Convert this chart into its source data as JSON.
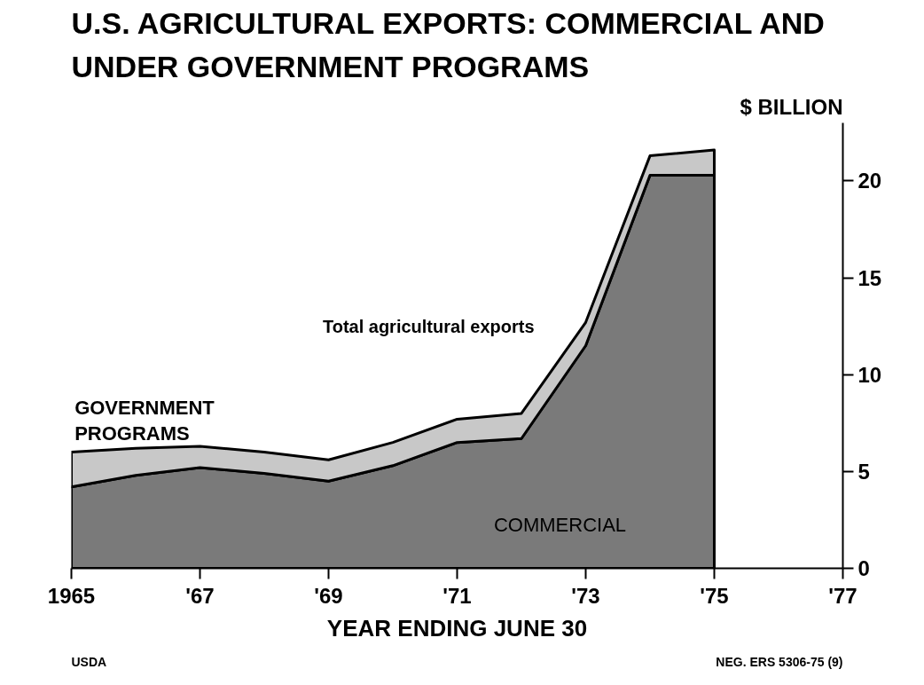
{
  "chart_data": {
    "type": "area",
    "stacked": true,
    "title": "U.S. AGRICULTURAL EXPORTS: COMMERCIAL AND UNDER GOVERNMENT PROGRAMS",
    "xlabel": "YEAR ENDING JUNE 30",
    "ylabel": "$ BILLION",
    "x": [
      1965,
      1966,
      1967,
      1968,
      1969,
      1970,
      1971,
      1972,
      1973,
      1974,
      1975
    ],
    "series": [
      {
        "name": "COMMERCIAL",
        "color": "#7a7a7a",
        "values": [
          4.2,
          4.8,
          5.2,
          4.9,
          4.5,
          5.3,
          6.5,
          6.7,
          11.5,
          20.3,
          20.3
        ]
      },
      {
        "name": "GOVERNMENT PROGRAMS",
        "color": "#c8c8c8",
        "values": [
          1.8,
          1.4,
          1.1,
          1.1,
          1.1,
          1.2,
          1.2,
          1.3,
          1.2,
          1.0,
          1.3
        ]
      }
    ],
    "xlim": [
      1965,
      1977
    ],
    "xticks": [
      1965,
      {
        "value": 1967,
        "label": "'67"
      },
      {
        "value": 1969,
        "label": "'69"
      },
      {
        "value": 1971,
        "label": "'71"
      },
      {
        "value": 1973,
        "label": "'73"
      },
      {
        "value": 1975,
        "label": "'75"
      },
      {
        "value": 1977,
        "label": "'77"
      }
    ],
    "ylim": [
      0,
      23
    ],
    "yticks": [
      0,
      5,
      10,
      15,
      20
    ],
    "grid": false,
    "annotations": [
      "Total agricultural exports",
      "USDA",
      "NEG. ERS 5306-75 (9)"
    ]
  }
}
